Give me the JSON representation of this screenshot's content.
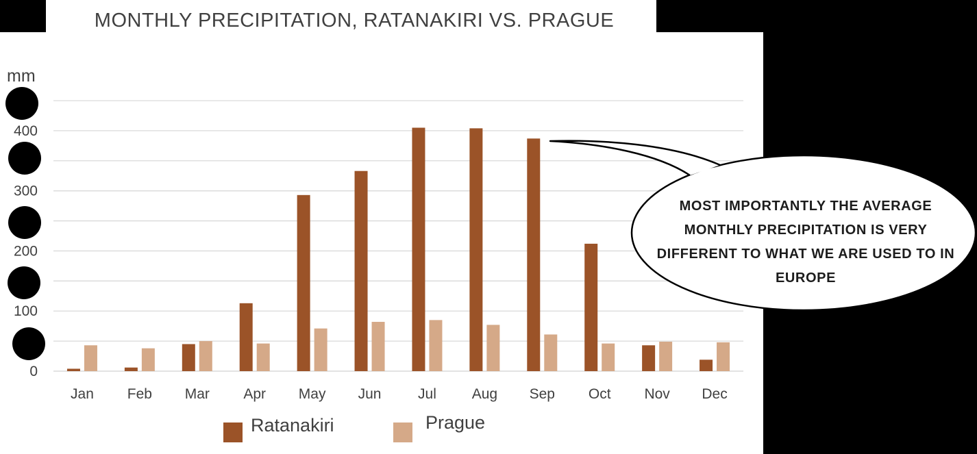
{
  "chart_data": {
    "type": "bar",
    "title": "MONTHLY PRECIPITATION, RATANAKIRI VS. PRAGUE",
    "ylabel": "mm",
    "xlabel": "",
    "categories": [
      "Jan",
      "Feb",
      "Mar",
      "Apr",
      "May",
      "Jun",
      "Jul",
      "Aug",
      "Sep",
      "Oct",
      "Nov",
      "Dec"
    ],
    "series": [
      {
        "name": "Ratanakiri",
        "color": "#9b5328",
        "values": [
          4,
          6,
          45,
          113,
          293,
          333,
          405,
          404,
          387,
          212,
          43,
          19
        ]
      },
      {
        "name": "Prague",
        "color": "#d5a988",
        "values": [
          43,
          38,
          50,
          46,
          71,
          82,
          85,
          77,
          61,
          46,
          49,
          48
        ]
      }
    ],
    "ylim": [
      0,
      450
    ],
    "yticks": [
      0,
      100,
      200,
      300,
      400
    ],
    "grid": true,
    "legend": "bottom",
    "annotation": "MOST IMPORTANTLY THE AVERAGE MONTHLY PRECIPITATION IS VERY DIFFERENT TO WHAT WE ARE USED TO IN EUROPE"
  }
}
